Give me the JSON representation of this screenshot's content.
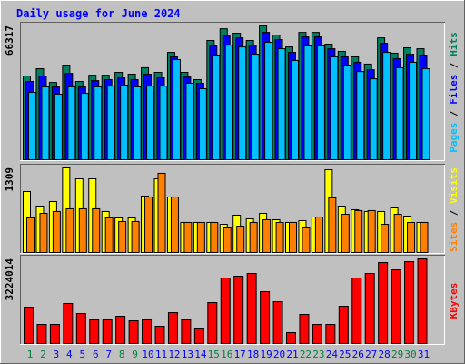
{
  "chart_data": [
    {
      "type": "bar",
      "title": "Daily usage for June 2024",
      "ylim": [
        0,
        66317
      ],
      "yticks": [
        66317
      ],
      "legend_separator": " / ",
      "series": [
        {
          "name": "Pages",
          "color": "#00c0ff",
          "values": [
            33400,
            36100,
            32500,
            36100,
            32900,
            36100,
            36500,
            37000,
            36100,
            36500,
            36500,
            49600,
            37900,
            35200,
            51900,
            56800,
            55900,
            52300,
            58200,
            55000,
            49200,
            56400,
            56400,
            51000,
            46900,
            43700,
            40100,
            53200,
            45600,
            48300,
            45100
          ]
        },
        {
          "name": "Files",
          "color": "#0000ff",
          "values": [
            38800,
            41500,
            36100,
            42800,
            36100,
            39200,
            39700,
            40600,
            39700,
            42400,
            40600,
            51000,
            41000,
            37900,
            56400,
            61300,
            60400,
            56800,
            63100,
            59500,
            53200,
            60900,
            60900,
            55000,
            51000,
            48300,
            44600,
            57700,
            50100,
            52300,
            51900
          ]
        },
        {
          "name": "Hits",
          "color": "#008060",
          "values": [
            41500,
            45100,
            38300,
            46900,
            38800,
            41900,
            41900,
            43300,
            42400,
            45600,
            43300,
            53200,
            43300,
            39700,
            59100,
            64900,
            62700,
            59100,
            66317,
            61800,
            55900,
            63100,
            63100,
            57300,
            53700,
            51000,
            47400,
            60400,
            52800,
            55500,
            55000
          ]
        }
      ]
    },
    {
      "type": "bar",
      "ylim": [
        0,
        1309
      ],
      "yticks": [
        1309
      ],
      "legend_separator": " / ",
      "series": [
        {
          "name": "Sites",
          "color": "#ff8000",
          "values": [
            535,
            605,
            634,
            676,
            676,
            676,
            535,
            479,
            479,
            859,
            1225,
            859,
            465,
            465,
            465,
            380,
            408,
            465,
            507,
            465,
            465,
            380,
            549,
            845,
            591,
            648,
            648,
            436,
            591,
            465,
            465
          ]
        },
        {
          "name": "Visits",
          "color": "#ffff00",
          "values": [
            943,
            718,
            788,
            1309,
            1140,
            1140,
            634,
            535,
            535,
            873,
            1140,
            859,
            465,
            465,
            465,
            436,
            577,
            521,
            605,
            507,
            465,
            493,
            549,
            1281,
            718,
            662,
            634,
            634,
            690,
            563,
            465
          ]
        }
      ]
    },
    {
      "type": "bar",
      "ylim": [
        0,
        3224014
      ],
      "yticks": [
        3224014
      ],
      "categories": [
        "1",
        "2",
        "3",
        "4",
        "5",
        "6",
        "7",
        "8",
        "9",
        "10",
        "11",
        "12",
        "13",
        "14",
        "15",
        "16",
        "17",
        "18",
        "19",
        "20",
        "21",
        "22",
        "23",
        "24",
        "25",
        "26",
        "27",
        "28",
        "29",
        "30",
        "31"
      ],
      "category_label_colors": [
        "#008040",
        "#008040",
        "#0000ff",
        "#0000ff",
        "#0000ff",
        "#0000ff",
        "#0000ff",
        "#008040",
        "#008040",
        "#0000ff",
        "#0000ff",
        "#0000ff",
        "#0000ff",
        "#0000ff",
        "#008040",
        "#008040",
        "#0000ff",
        "#0000ff",
        "#0000ff",
        "#0000ff",
        "#0000ff",
        "#008040",
        "#008040",
        "#0000ff",
        "#0000ff",
        "#0000ff",
        "#0000ff",
        "#0000ff",
        "#008040",
        "#008040",
        "#0000ff"
      ],
      "series": [
        {
          "name": "KBytes",
          "color": "#ff0000",
          "values": [
            1386700,
            728000,
            728000,
            1525300,
            1144000,
            901300,
            901300,
            1040000,
            866700,
            901300,
            658700,
            1178700,
            901300,
            589300,
            1560000,
            2496000,
            2565400,
            2669400,
            1976000,
            1594700,
            416000,
            1109300,
            728000,
            728000,
            1421300,
            2496000,
            2669400,
            3085400,
            2808000,
            3120000,
            3224014
          ]
        }
      ]
    }
  ]
}
